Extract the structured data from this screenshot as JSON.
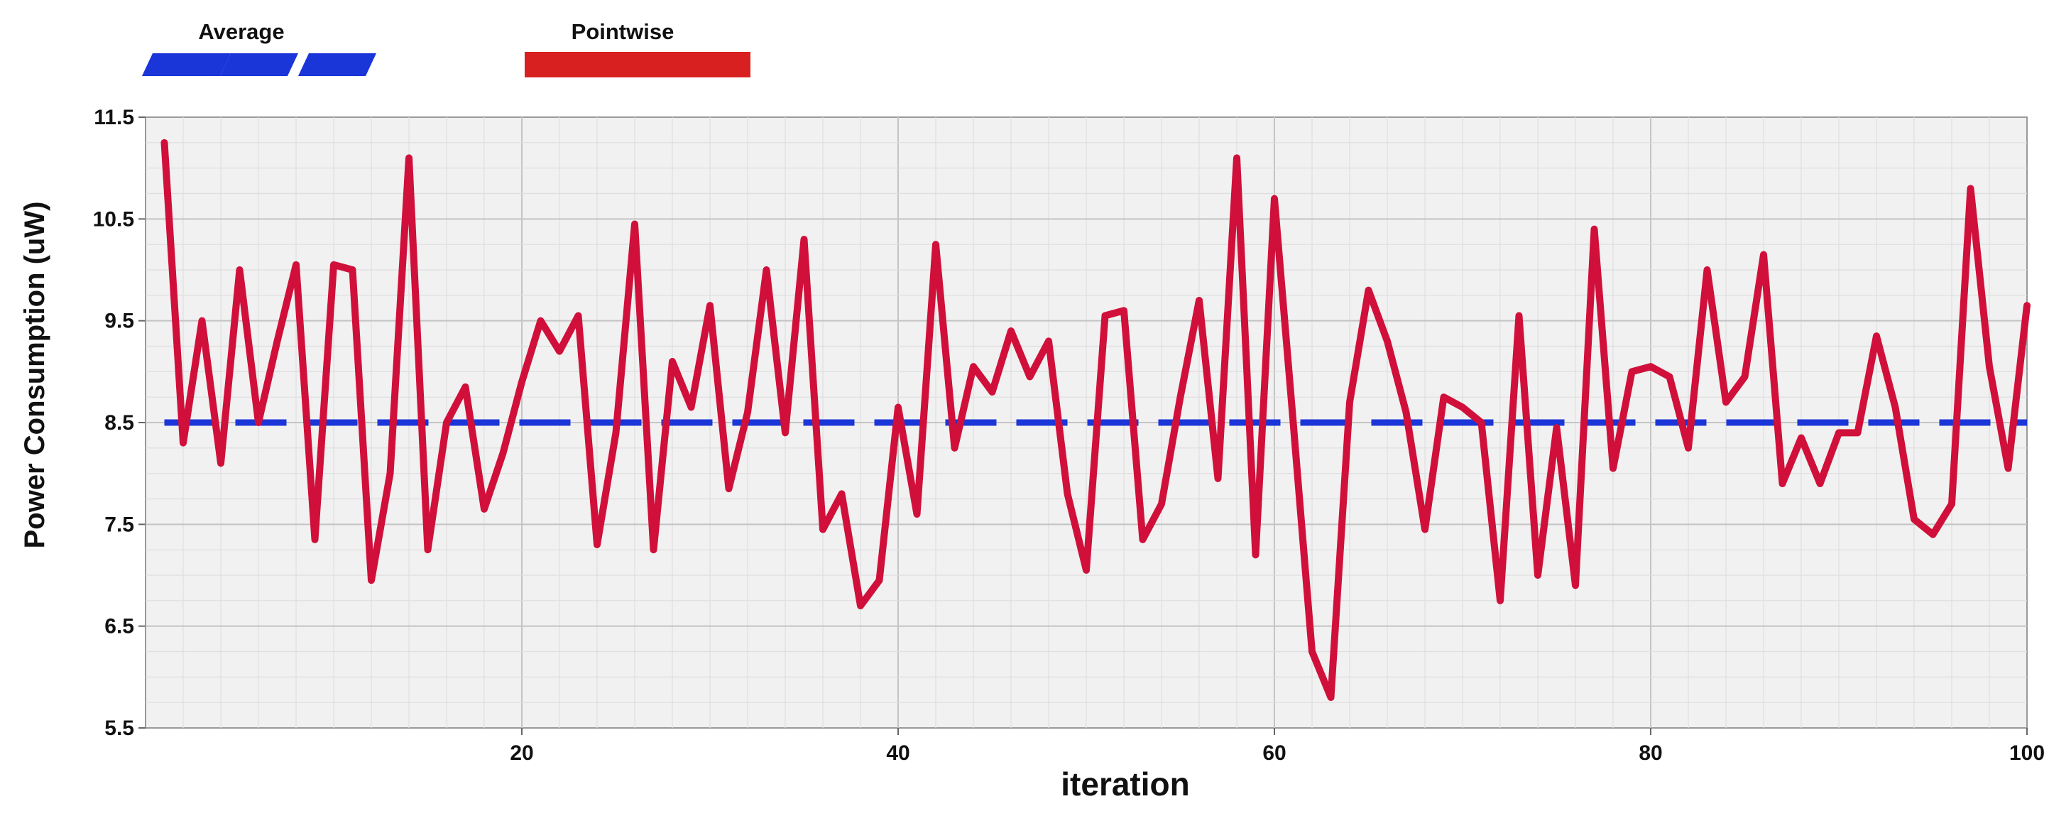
{
  "chart_data": {
    "type": "line",
    "title": "",
    "xlabel": "iteration",
    "ylabel": "Power Consumption (uW)",
    "xlim": [
      0,
      100
    ],
    "ylim": [
      5.5,
      11.5
    ],
    "x_ticks": [
      20,
      40,
      60,
      80,
      100
    ],
    "y_ticks": [
      5.5,
      6.5,
      7.5,
      8.5,
      9.5,
      10.5,
      11.5
    ],
    "grid": true,
    "legend": "top-left",
    "x": [
      1,
      2,
      3,
      4,
      5,
      6,
      7,
      8,
      9,
      10,
      11,
      12,
      13,
      14,
      15,
      16,
      17,
      18,
      19,
      20,
      21,
      22,
      23,
      24,
      25,
      26,
      27,
      28,
      29,
      30,
      31,
      32,
      33,
      34,
      35,
      36,
      37,
      38,
      39,
      40,
      41,
      42,
      43,
      44,
      45,
      46,
      47,
      48,
      49,
      50,
      51,
      52,
      53,
      54,
      55,
      56,
      57,
      58,
      59,
      60,
      61,
      62,
      63,
      64,
      65,
      66,
      67,
      68,
      69,
      70,
      71,
      72,
      73,
      74,
      75,
      76,
      77,
      78,
      79,
      80,
      81,
      82,
      83,
      84,
      85,
      86,
      87,
      88,
      89,
      90,
      91,
      92,
      93,
      94,
      95,
      96,
      97,
      98,
      99,
      100
    ],
    "series": [
      {
        "name": "Pointwise",
        "color": "#d0103a",
        "style": "solid",
        "values": [
          11.25,
          8.3,
          9.5,
          8.1,
          10.0,
          8.5,
          9.3,
          10.05,
          7.35,
          10.05,
          10.0,
          6.95,
          8.0,
          11.1,
          7.25,
          8.5,
          8.85,
          7.65,
          8.2,
          8.9,
          9.5,
          9.2,
          9.55,
          7.3,
          8.4,
          10.45,
          7.25,
          9.1,
          8.65,
          9.65,
          7.85,
          8.6,
          10.0,
          8.4,
          10.3,
          7.45,
          7.8,
          6.7,
          6.95,
          8.65,
          7.6,
          10.25,
          8.25,
          9.05,
          8.8,
          9.4,
          8.95,
          9.3,
          7.8,
          7.05,
          9.55,
          9.6,
          7.35,
          7.7,
          8.75,
          9.7,
          7.95,
          11.1,
          7.2,
          10.7,
          8.5,
          6.25,
          5.8,
          8.7,
          9.8,
          9.3,
          8.6,
          7.45,
          8.75,
          8.65,
          8.5,
          6.75,
          9.55,
          7.0,
          8.45,
          6.9,
          10.4,
          8.05,
          9.0,
          9.05,
          8.95,
          8.25,
          10.0,
          8.7,
          8.95,
          10.15,
          7.9,
          8.35,
          7.9,
          8.4,
          8.4,
          9.35,
          8.65,
          7.55,
          7.4,
          7.7,
          10.8,
          9.05,
          8.05,
          9.65
        ]
      },
      {
        "name": "Average",
        "color": "#1a35d8",
        "style": "dashed",
        "values": [
          8.5,
          8.5,
          8.5,
          8.5,
          8.5,
          8.5,
          8.5,
          8.5,
          8.5,
          8.5,
          8.5,
          8.5,
          8.5,
          8.5,
          8.5,
          8.5,
          8.5,
          8.5,
          8.5,
          8.5,
          8.5,
          8.5,
          8.5,
          8.5,
          8.5,
          8.5,
          8.5,
          8.5,
          8.5,
          8.5,
          8.5,
          8.5,
          8.5,
          8.5,
          8.5,
          8.5,
          8.5,
          8.5,
          8.5,
          8.5,
          8.5,
          8.5,
          8.5,
          8.5,
          8.5,
          8.5,
          8.5,
          8.5,
          8.5,
          8.5,
          8.5,
          8.5,
          8.5,
          8.5,
          8.5,
          8.5,
          8.5,
          8.5,
          8.5,
          8.5,
          8.5,
          8.5,
          8.5,
          8.5,
          8.5,
          8.5,
          8.5,
          8.5,
          8.5,
          8.5,
          8.5,
          8.5,
          8.5,
          8.5,
          8.5,
          8.5,
          8.5,
          8.5,
          8.5,
          8.5,
          8.5,
          8.5,
          8.5,
          8.5,
          8.5,
          8.5,
          8.5,
          8.5,
          8.5,
          8.5,
          8.5,
          8.5,
          8.5,
          8.5,
          8.5,
          8.5,
          8.5,
          8.5,
          8.5,
          8.5
        ]
      }
    ],
    "legend_entries": [
      {
        "label": "Average",
        "color": "#1a35d8",
        "style": "dashed"
      },
      {
        "label": "Pointwise",
        "color": "#d0103a",
        "style": "solid"
      }
    ]
  }
}
